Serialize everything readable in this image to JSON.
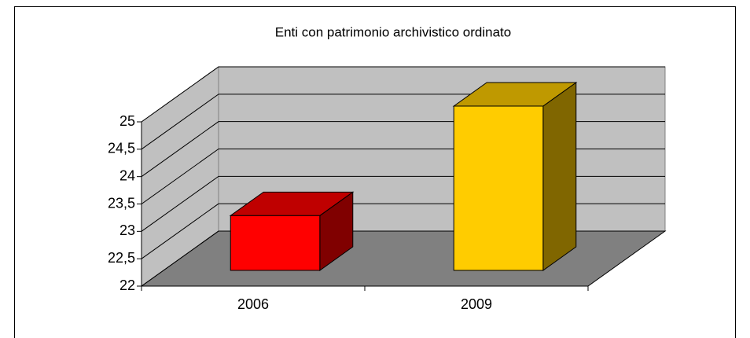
{
  "chart_data": {
    "type": "bar3d",
    "title": "Enti con patrimonio archivistico ordinato",
    "categories": [
      "2006",
      "2009"
    ],
    "values": [
      23,
      25
    ],
    "colors": [
      "#ff0000",
      "#ffcc00"
    ],
    "ylim": [
      22,
      25
    ],
    "yticks": [
      22,
      {
        "value": 22.5,
        "label": "22,5"
      },
      23,
      {
        "value": 23.5,
        "label": "23,5"
      },
      24,
      {
        "value": 24.5,
        "label": "24,5"
      },
      25
    ],
    "grid": true
  }
}
